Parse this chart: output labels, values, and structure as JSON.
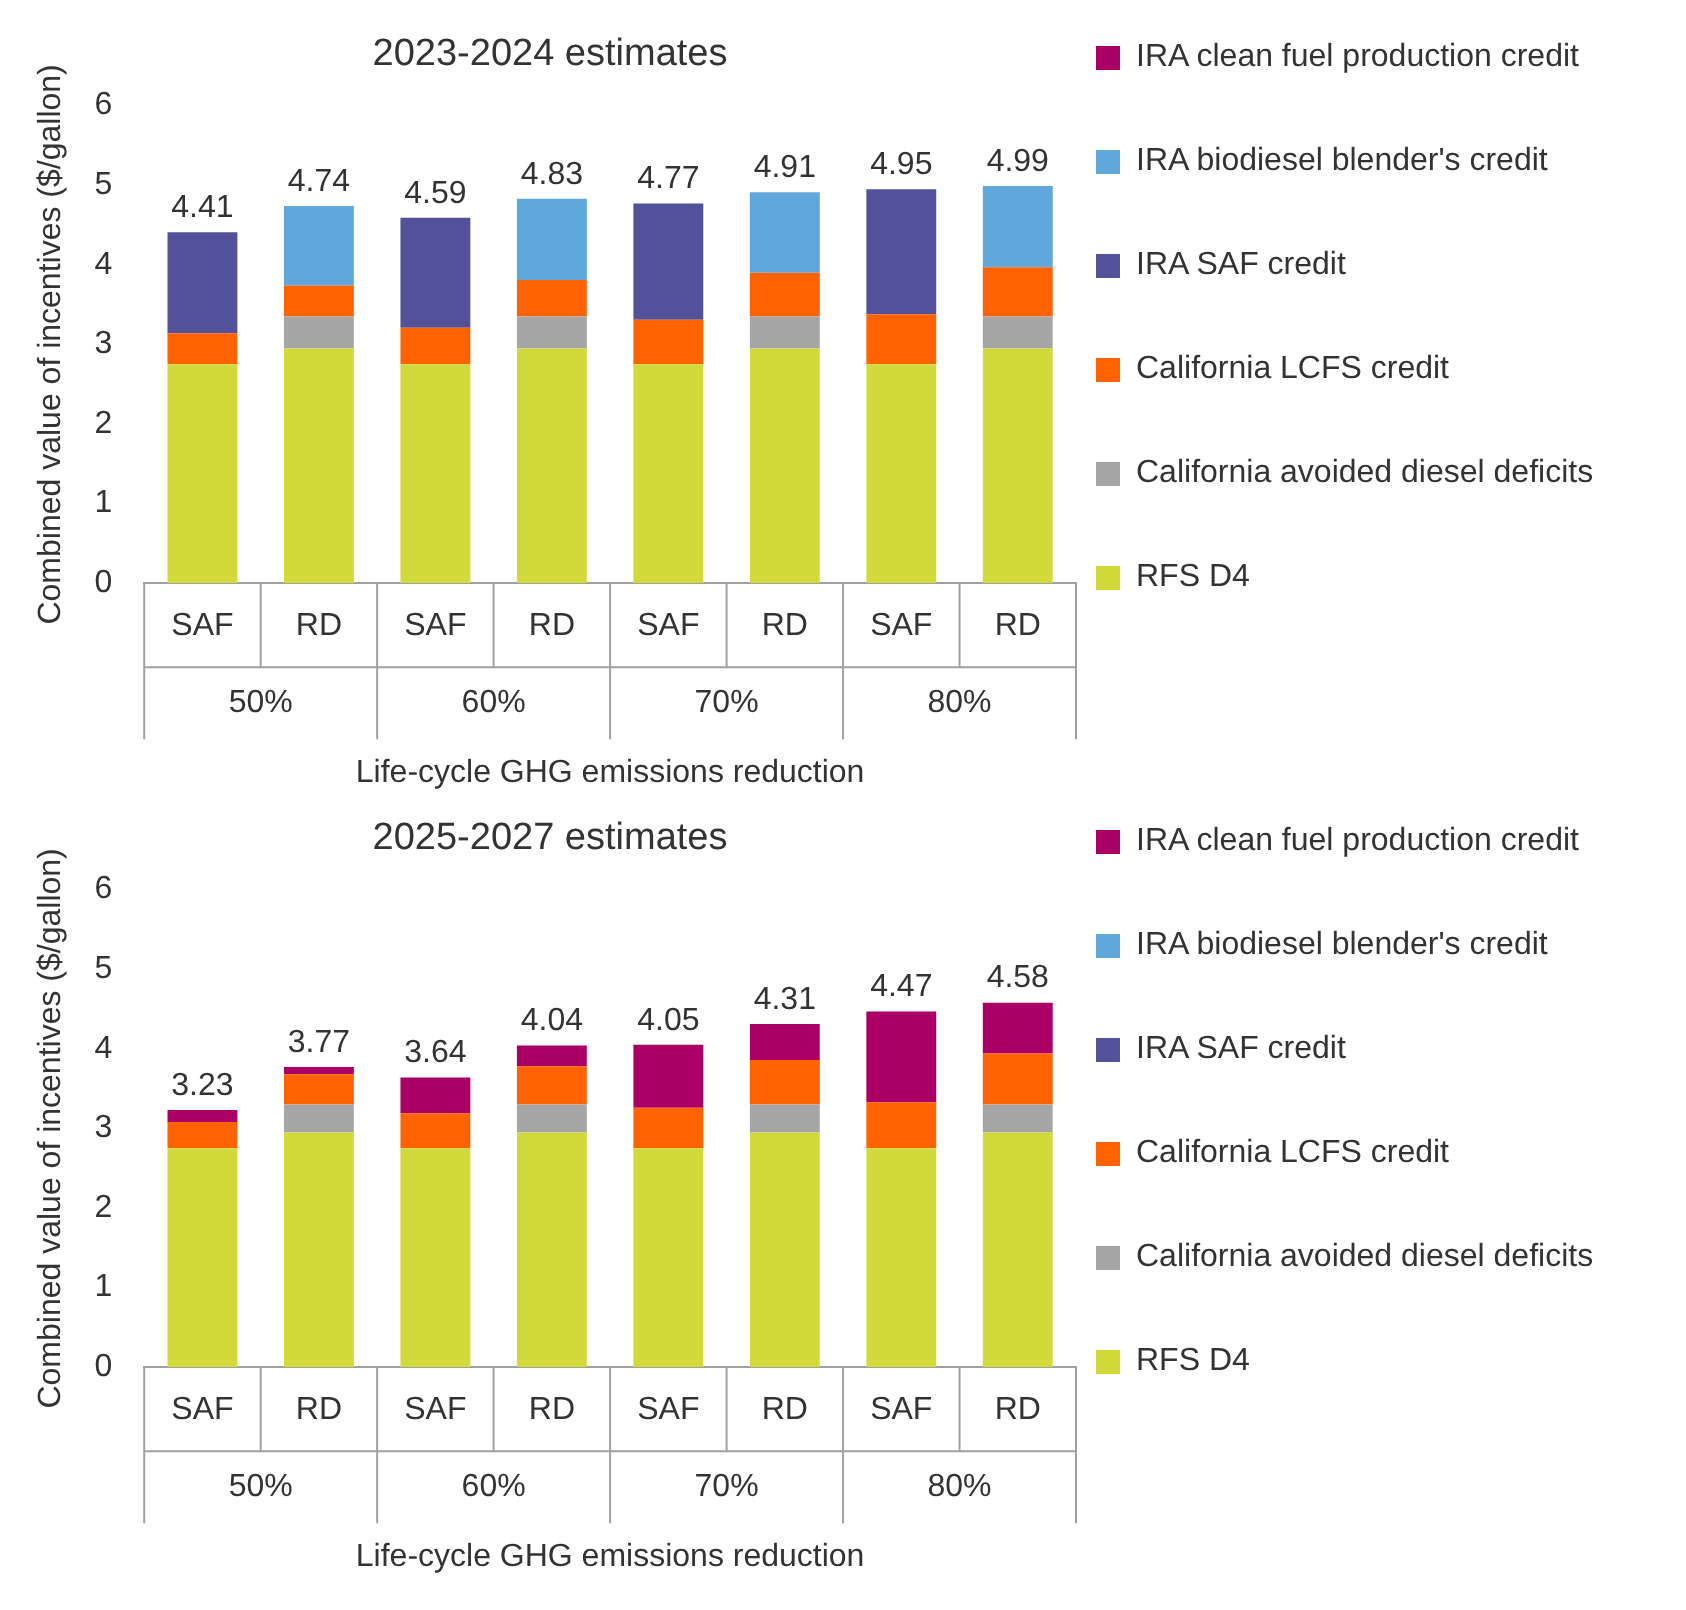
{
  "chart_data": [
    {
      "type": "bar",
      "title": "2023-2024 estimates",
      "ylabel": "Combined value of incentives ($/gallon)",
      "xlabel": "Life-cycle GHG emissions reduction",
      "categories": [
        "SAF",
        "RD",
        "SAF",
        "RD",
        "SAF",
        "RD",
        "SAF",
        "RD"
      ],
      "annotations": [
        "50%",
        "60%",
        "70%",
        "80%"
      ],
      "stacked": true,
      "ylim": [
        0,
        6
      ],
      "yticks": [
        0,
        1,
        2,
        3,
        4,
        5,
        6
      ],
      "grid": false,
      "legend": "right",
      "series": [
        {
          "name": "RFS D4",
          "color": "#d1d93b",
          "values": [
            2.75,
            2.95,
            2.75,
            2.95,
            2.75,
            2.95,
            2.75,
            2.95
          ]
        },
        {
          "name": "California avoided diesel deficits",
          "color": "#a6a6a6",
          "values": [
            0,
            0.4,
            0,
            0.4,
            0,
            0.4,
            0,
            0.4
          ]
        },
        {
          "name": "California LCFS credit",
          "color": "#ff6200",
          "values": [
            0.39,
            0.39,
            0.46,
            0.46,
            0.56,
            0.55,
            0.63,
            0.62
          ]
        },
        {
          "name": "IRA SAF credit",
          "color": "#525199",
          "values": [
            1.27,
            0,
            1.38,
            0,
            1.46,
            0,
            1.57,
            0
          ]
        },
        {
          "name": "IRA biodiesel blender's credit",
          "color": "#60a8dc",
          "values": [
            0,
            1.0,
            0,
            1.02,
            0,
            1.01,
            0,
            1.02
          ]
        },
        {
          "name": "IRA clean fuel production credit",
          "color": "#aa0066",
          "values": [
            0,
            0,
            0,
            0,
            0,
            0,
            0,
            0
          ]
        }
      ],
      "totals": [
        "4.41",
        "4.74",
        "4.59",
        "4.83",
        "4.77",
        "4.91",
        "4.95",
        "4.99"
      ]
    },
    {
      "type": "bar",
      "title": "2025-2027 estimates",
      "ylabel": "Combined value of incentives ($/gallon)",
      "xlabel": "Life-cycle GHG emissions reduction",
      "categories": [
        "SAF",
        "RD",
        "SAF",
        "RD",
        "SAF",
        "RD",
        "SAF",
        "RD"
      ],
      "annotations": [
        "50%",
        "60%",
        "70%",
        "80%"
      ],
      "stacked": true,
      "ylim": [
        0,
        6
      ],
      "yticks": [
        0,
        1,
        2,
        3,
        4,
        5,
        6
      ],
      "grid": false,
      "legend": "right",
      "series": [
        {
          "name": "RFS D4",
          "color": "#d1d93b",
          "values": [
            2.75,
            2.95,
            2.75,
            2.95,
            2.75,
            2.95,
            2.75,
            2.95
          ]
        },
        {
          "name": "California avoided diesel deficits",
          "color": "#a6a6a6",
          "values": [
            0,
            0.35,
            0,
            0.35,
            0,
            0.35,
            0,
            0.35
          ]
        },
        {
          "name": "California LCFS credit",
          "color": "#ff6200",
          "values": [
            0.33,
            0.38,
            0.44,
            0.48,
            0.51,
            0.56,
            0.58,
            0.64
          ]
        },
        {
          "name": "IRA SAF credit",
          "color": "#525199",
          "values": [
            0,
            0,
            0,
            0,
            0,
            0,
            0,
            0
          ]
        },
        {
          "name": "IRA biodiesel blender's credit",
          "color": "#60a8dc",
          "values": [
            0,
            0,
            0,
            0,
            0,
            0,
            0,
            0
          ]
        },
        {
          "name": "IRA clean fuel production credit",
          "color": "#aa0066",
          "values": [
            0.15,
            0.09,
            0.45,
            0.26,
            0.79,
            0.45,
            1.14,
            0.64
          ]
        }
      ],
      "totals": [
        "3.23",
        "3.77",
        "3.64",
        "4.04",
        "4.05",
        "4.31",
        "4.47",
        "4.58"
      ]
    }
  ]
}
